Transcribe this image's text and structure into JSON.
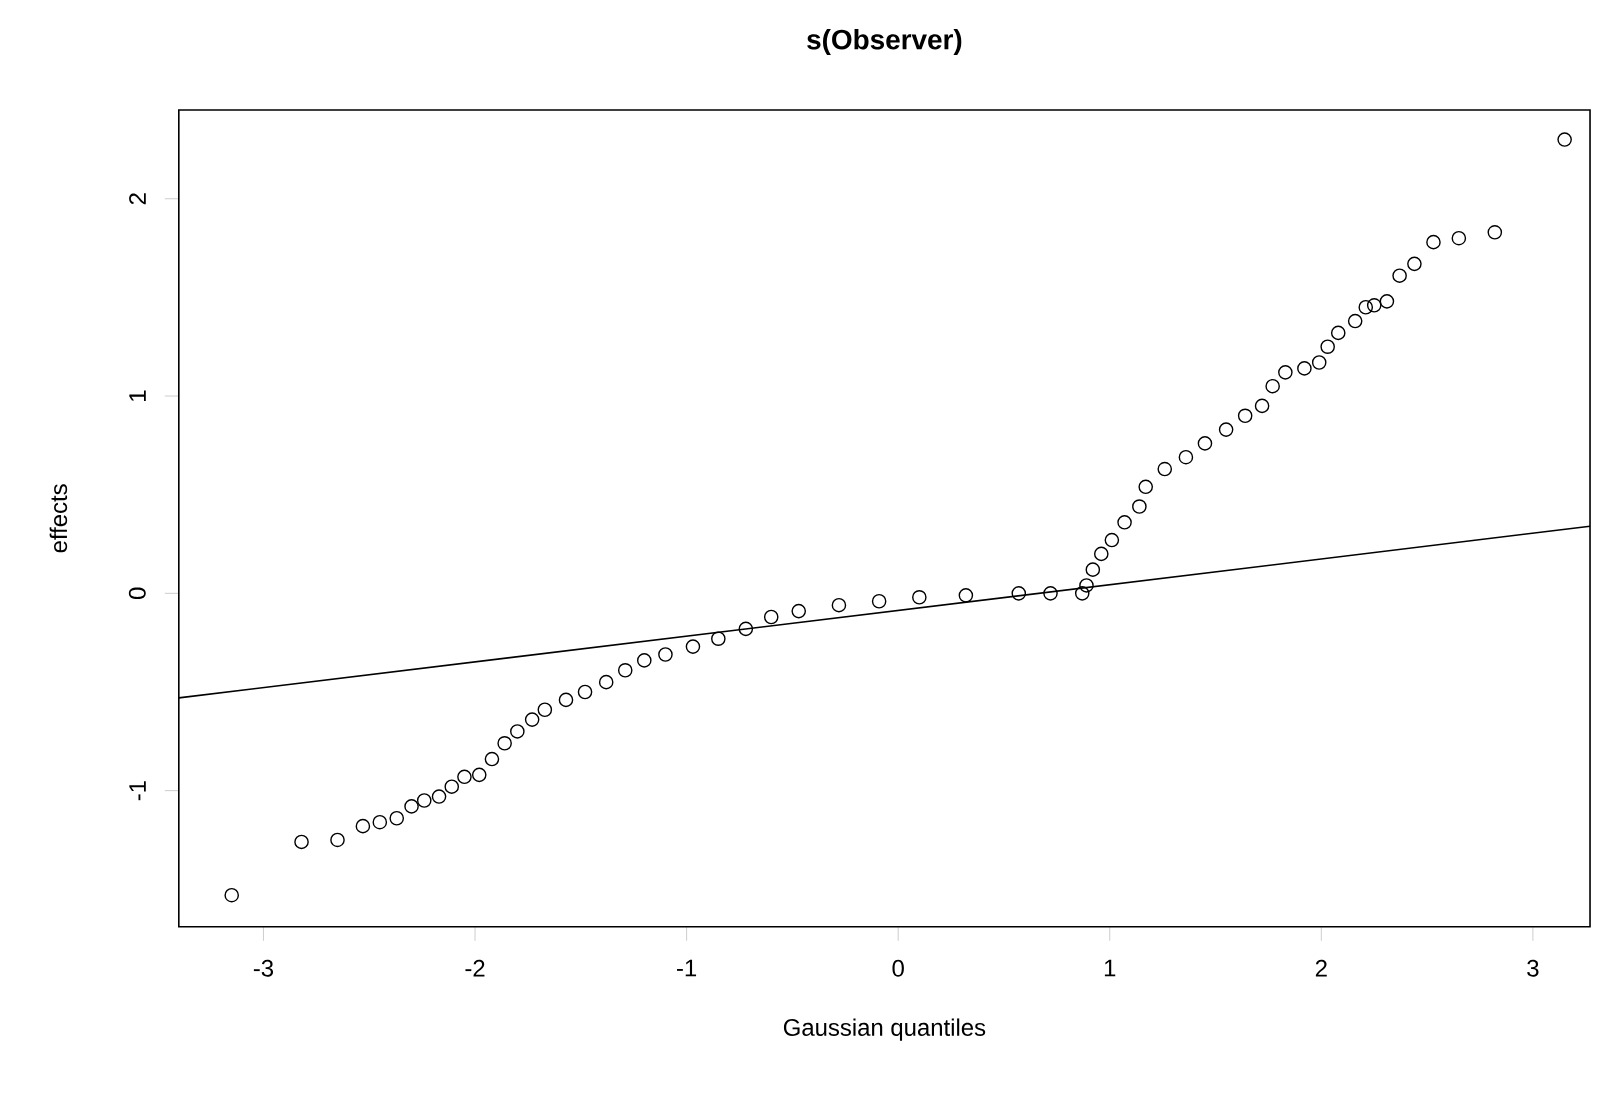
{
  "chart_data": {
    "type": "scatter",
    "title": "s(Observer)",
    "xlabel": "Gaussian quantiles",
    "ylabel": "effects",
    "xlim": [
      -3.4,
      3.27
    ],
    "ylim": [
      -1.69,
      2.45
    ],
    "xticks": [
      -3,
      -2,
      -1,
      0,
      1,
      2,
      3
    ],
    "yticks": [
      -1,
      0,
      1,
      2
    ],
    "grid": false,
    "series": [
      {
        "marker": "circle",
        "color": "#000000",
        "x": [
          -3.15,
          -2.82,
          -2.65,
          -2.53,
          -2.45,
          -2.37,
          -2.3,
          -2.24,
          -2.17,
          -2.11,
          -2.05,
          -1.98,
          -1.92,
          -1.86,
          -1.8,
          -1.73,
          -1.67,
          -1.57,
          -1.48,
          -1.38,
          -1.29,
          -1.2,
          -1.1,
          -0.97,
          -0.85,
          -0.72,
          -0.6,
          -0.47,
          -0.28,
          -0.09,
          0.1,
          0.32,
          0.57,
          0.72,
          0.87,
          0.89,
          0.92,
          0.96,
          1.01,
          1.07,
          1.14,
          1.17,
          1.26,
          1.36,
          1.45,
          1.55,
          1.64,
          1.72,
          1.77,
          1.83,
          1.92,
          1.99,
          2.03,
          2.08,
          2.16,
          2.21,
          2.25,
          2.31,
          2.37,
          2.44,
          2.53,
          2.65,
          2.82,
          3.15
        ],
        "values": [
          -1.53,
          -1.26,
          -1.25,
          -1.18,
          -1.16,
          -1.14,
          -1.08,
          -1.05,
          -1.03,
          -0.98,
          -0.93,
          -0.92,
          -0.84,
          -0.76,
          -0.7,
          -0.64,
          -0.59,
          -0.54,
          -0.5,
          -0.45,
          -0.39,
          -0.34,
          -0.31,
          -0.27,
          -0.23,
          -0.18,
          -0.12,
          -0.09,
          -0.06,
          -0.04,
          -0.02,
          -0.01,
          0,
          0,
          0,
          0.04,
          0.12,
          0.2,
          0.27,
          0.36,
          0.44,
          0.54,
          0.63,
          0.69,
          0.76,
          0.83,
          0.9,
          0.95,
          1.05,
          1.12,
          1.14,
          1.17,
          1.25,
          1.32,
          1.38,
          1.45,
          1.46,
          1.48,
          1.61,
          1.67,
          1.78,
          1.8,
          1.83,
          2.3
        ]
      },
      {
        "type": "line",
        "color": "#000000",
        "x": [
          -3.4,
          3.27
        ],
        "values": [
          -0.53,
          0.34
        ]
      }
    ]
  }
}
